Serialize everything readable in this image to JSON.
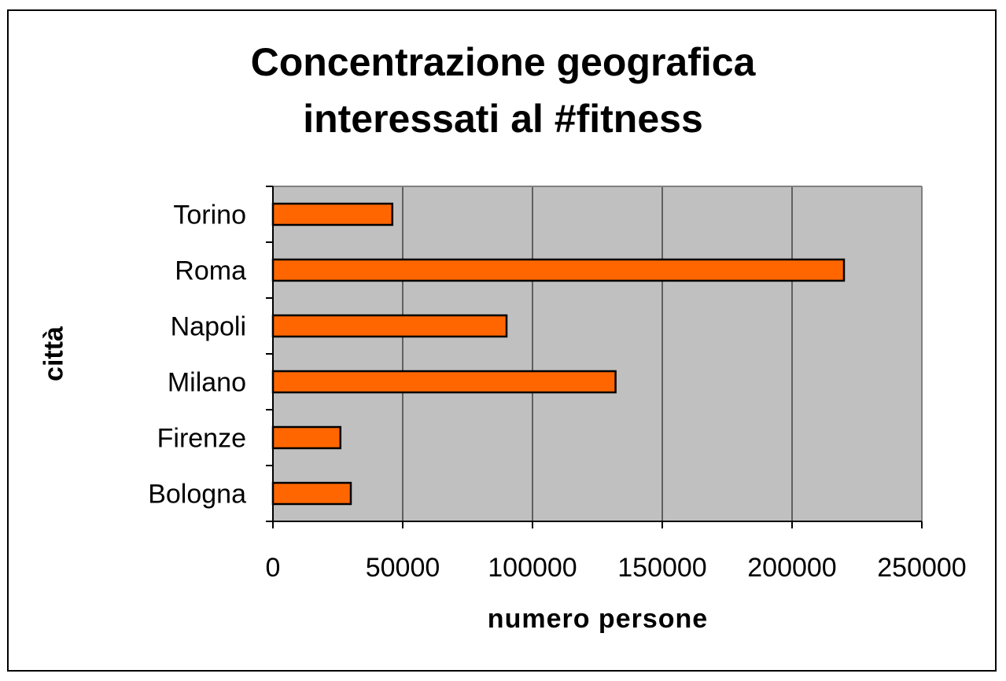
{
  "chart_data": {
    "type": "bar",
    "orientation": "horizontal",
    "title_lines": [
      "Concentrazione geografica",
      "interessati al #fitness"
    ],
    "xlabel": "numero persone",
    "ylabel": "città",
    "categories": [
      "Torino",
      "Roma",
      "Napoli",
      "Milano",
      "Firenze",
      "Bologna"
    ],
    "values": [
      46000,
      220000,
      90000,
      132000,
      26000,
      30000
    ],
    "xlim": [
      0,
      250000
    ],
    "xticks": [
      0,
      50000,
      100000,
      150000,
      200000,
      250000
    ],
    "xtick_labels": [
      "0",
      "50000",
      "100000",
      "150000",
      "200000",
      "250000"
    ],
    "grid": true,
    "legend": "none",
    "colors": {
      "bar": "#ff6600",
      "plot_bg": "#c0c0c0",
      "gridline": "#000000"
    }
  }
}
